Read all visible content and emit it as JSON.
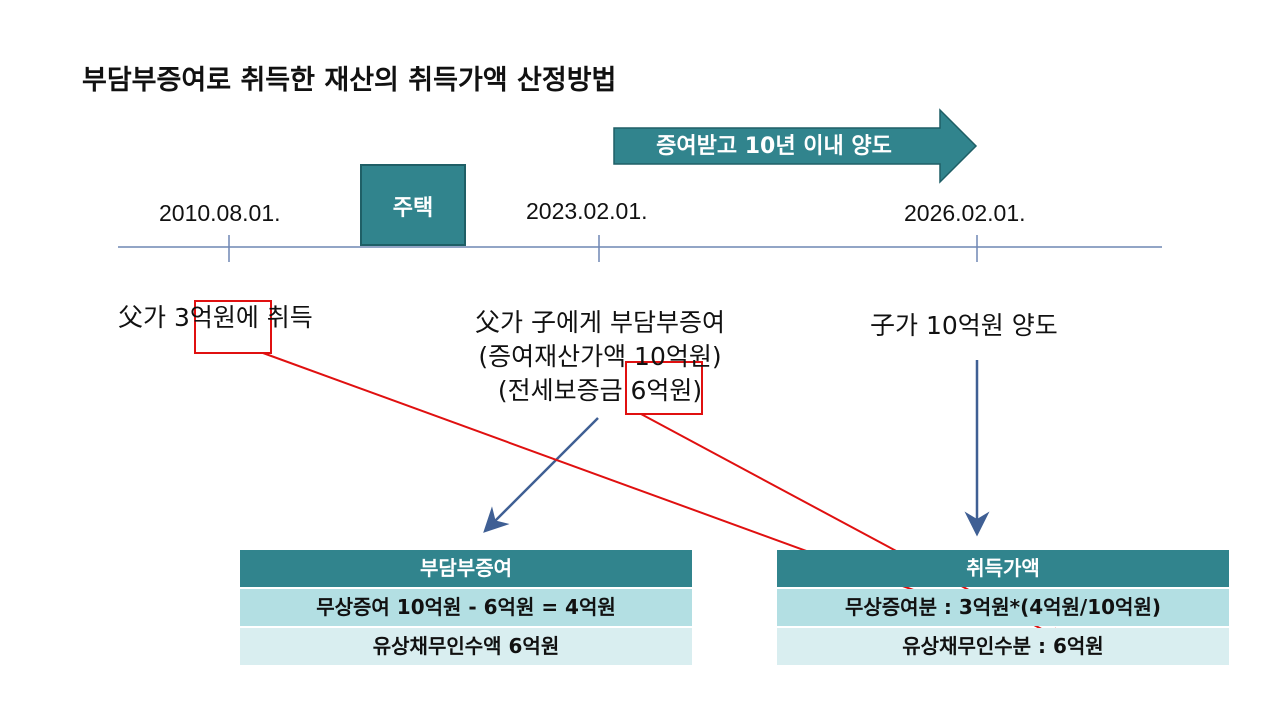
{
  "title": "부담부증여로 취득한 재산의 취득가액 산정방법",
  "arrow_label": "증여받고 10년 이내 양도",
  "house_label": "주택",
  "dates": [
    "2010.08.01.",
    "2023.02.01.",
    "2026.02.01."
  ],
  "events": {
    "e1": "父가 3억원에 취득",
    "e2_line1": "父가 子에게 부담부증여",
    "e2_line2": "(증여재산가액 10억원)",
    "e2_line3": "(전세보증금 6억원)",
    "e3": "子가 10억원 양도"
  },
  "table_gift": {
    "header": "부담부증여",
    "row1": "무상증여 10억원 - 6억원 = 4억원",
    "row2": "유상채무인수액 6억원"
  },
  "table_cost": {
    "header": "취득가액",
    "row1": "무상증여분 : 3억원*(4억원/10억원)",
    "row2": "유상채무인수분 : 6억원"
  },
  "colors": {
    "accent": "#31848d",
    "timeline": "#6f87b4",
    "blue_arrow": "#3f5f94",
    "red": "#e01010",
    "row_dark": "#b3dfe3",
    "row_light": "#d9eef0"
  }
}
